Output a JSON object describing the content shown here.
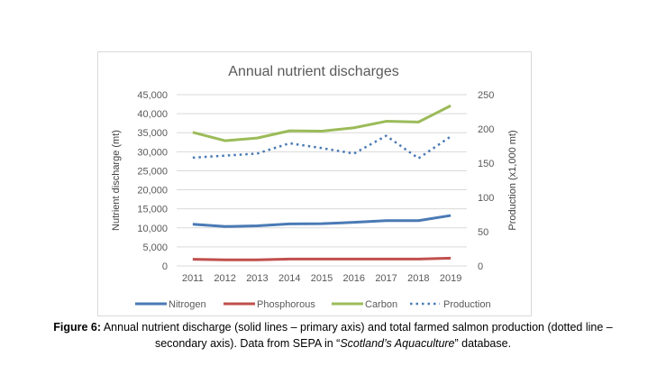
{
  "chart_data": {
    "type": "line",
    "title": "Annual nutrient discharges",
    "ylabel": "Nutrient discharge (mt)",
    "y2label": "Production (x1,000 mt)",
    "categories": [
      "2011",
      "2012",
      "2013",
      "2014",
      "2015",
      "2016",
      "2017",
      "2018",
      "2019"
    ],
    "ylim": [
      0,
      45000
    ],
    "yticks": [
      "0",
      "5,000",
      "10,000",
      "15,000",
      "20,000",
      "25,000",
      "30,000",
      "35,000",
      "40,000",
      "45,000"
    ],
    "y2lim": [
      0,
      250
    ],
    "y2ticks": [
      "0",
      "50",
      "100",
      "150",
      "200",
      "250"
    ],
    "grid": true,
    "legend_position": "bottom",
    "series": [
      {
        "name": "Nitrogen",
        "axis": "primary",
        "style": "solid",
        "color": "#4a7ab5",
        "values": [
          10950,
          10350,
          10550,
          11050,
          11100,
          11450,
          11900,
          11900,
          13250
        ]
      },
      {
        "name": "Phosphorous",
        "axis": "primary",
        "style": "solid",
        "color": "#c0504d",
        "values": [
          1750,
          1600,
          1600,
          1800,
          1800,
          1800,
          1800,
          1800,
          2050
        ]
      },
      {
        "name": "Carbon",
        "axis": "primary",
        "style": "solid",
        "color": "#9bbb59",
        "values": [
          35100,
          32900,
          33600,
          35500,
          35400,
          36300,
          38000,
          37800,
          42100
        ]
      },
      {
        "name": "Production",
        "axis": "secondary",
        "style": "dotted",
        "color": "#4a7ab5",
        "values": [
          158,
          161,
          164,
          179,
          172,
          164,
          190,
          157,
          189
        ]
      }
    ]
  },
  "caption": {
    "label": "Figure 6:",
    "line1": " Annual nutrient discharge (solid lines – primary axis) and total farmed salmon production (dotted line –",
    "line2_pre": "secondary axis). Data from SEPA in “",
    "line2_italic": "Scotland’s Aquaculture",
    "line2_post": "” database."
  }
}
